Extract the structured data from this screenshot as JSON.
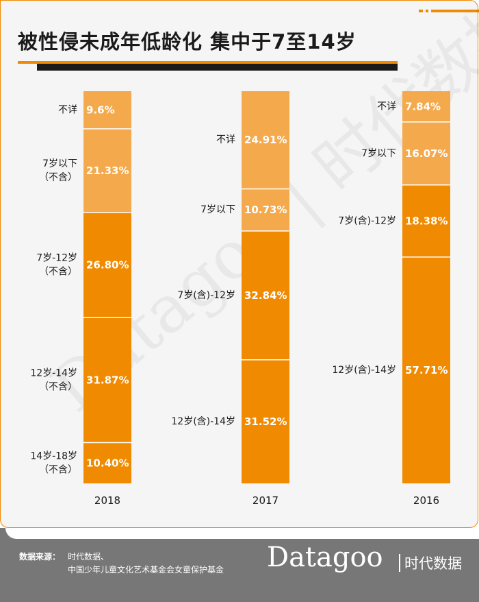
{
  "title": "被性侵未成年低龄化 集中于7至14岁",
  "watermark": "Datagoo | 时代数据",
  "footer": {
    "source_label": "数据来源：",
    "sources": [
      "时代数据、",
      "中国少年儿童文化艺术基金会女童保护基金"
    ]
  },
  "logo": {
    "word": "Datagoo",
    "cn": "时代数据"
  },
  "colors": {
    "frame_bg": "#f5f5f5",
    "accent": "#f08a00",
    "light": "#f4aa4c",
    "dark": "#1a1a1a",
    "footer_bg": "#777777"
  },
  "chart_data": {
    "type": "bar",
    "stacked": true,
    "percent": true,
    "ylim": [
      0,
      100
    ],
    "grid": false,
    "legend": "none",
    "bars": [
      {
        "year": "2018",
        "segments": [
          {
            "label": [
              "不详"
            ],
            "value": 9.6,
            "value_label": "9.6%",
            "tone": "light"
          },
          {
            "label": [
              "7岁以下",
              "（不含）"
            ],
            "value": 21.33,
            "value_label": "21.33%",
            "tone": "light"
          },
          {
            "label": [
              "7岁-12岁",
              "（不含）"
            ],
            "value": 26.8,
            "value_label": "26.80%",
            "tone": "dark"
          },
          {
            "label": [
              "12岁-14岁",
              "（不含）"
            ],
            "value": 31.87,
            "value_label": "31.87%",
            "tone": "dark"
          },
          {
            "label": [
              "14岁-18岁",
              "（不含）"
            ],
            "value": 10.4,
            "value_label": "10.40%",
            "tone": "dark"
          }
        ]
      },
      {
        "year": "2017",
        "segments": [
          {
            "label": [
              "不详"
            ],
            "value": 24.91,
            "value_label": "24.91%",
            "tone": "light"
          },
          {
            "label": [
              "7岁以下"
            ],
            "value": 10.73,
            "value_label": "10.73%",
            "tone": "light"
          },
          {
            "label": [
              "7岁(含)-12岁"
            ],
            "value": 32.84,
            "value_label": "32.84%",
            "tone": "dark"
          },
          {
            "label": [
              "12岁(含)-14岁"
            ],
            "value": 31.52,
            "value_label": "31.52%",
            "tone": "dark"
          }
        ]
      },
      {
        "year": "2016",
        "segments": [
          {
            "label": [
              "不详"
            ],
            "value": 7.84,
            "value_label": "7.84%",
            "tone": "light"
          },
          {
            "label": [
              "7岁以下"
            ],
            "value": 16.07,
            "value_label": "16.07%",
            "tone": "light"
          },
          {
            "label": [
              "7岁(含)-12岁"
            ],
            "value": 18.38,
            "value_label": "18.38%",
            "tone": "dark"
          },
          {
            "label": [
              "12岁(含)-14岁"
            ],
            "value": 57.71,
            "value_label": "57.71%",
            "tone": "dark"
          }
        ]
      }
    ]
  }
}
